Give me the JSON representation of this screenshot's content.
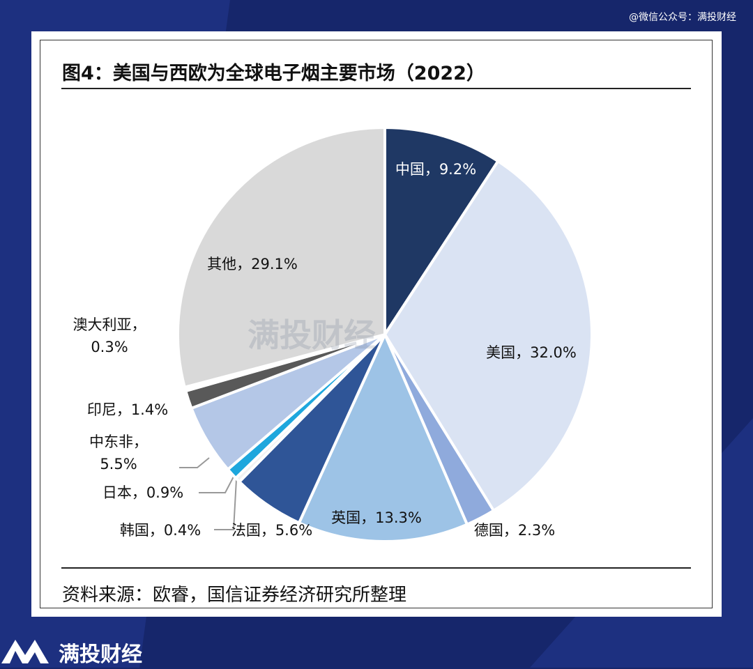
{
  "chart_data": {
    "type": "pie",
    "title": "图4：美国与西欧为全球电子烟主要市场（2022）",
    "source": "资料来源：欧睿，国信证券经济研究所整理",
    "values": [
      9.2,
      32.0,
      2.3,
      13.3,
      5.6,
      0.4,
      0.9,
      5.5,
      1.4,
      0.3,
      29.1
    ],
    "value_labels": [
      "中国，9.2%",
      "美国，32.0%",
      "德国，2.3%",
      "英国，13.3%",
      "法国，5.6%",
      "韩国，0.4%",
      "日本，0.9%",
      "中东非，5.5%",
      "印尼，1.4%",
      "澳大利亚，0.3%",
      "其他，29.1%"
    ],
    "colors": [
      "#1f3864",
      "#dae3f3",
      "#8faadc",
      "#9dc3e6",
      "#2f5597",
      "#f2f2f2",
      "#1ea7dd",
      "#b4c7e7",
      "#595959",
      "#ffffff",
      "#d9d9d9"
    ]
  },
  "watermark": "满投财经",
  "header_note": "@微信公众号：满投财经",
  "footer_logo": "满投财经"
}
